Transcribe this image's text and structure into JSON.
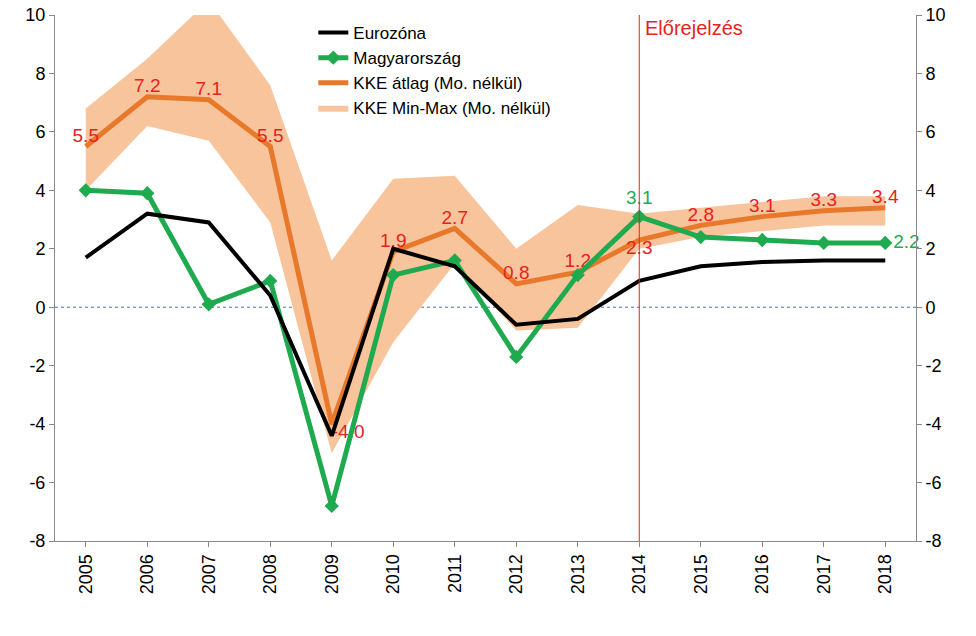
{
  "chart_data": {
    "type": "line",
    "categories": [
      "2005",
      "2006",
      "2007",
      "2008",
      "2009",
      "2010",
      "2011",
      "2012",
      "2013",
      "2014",
      "2015",
      "2016",
      "2017",
      "2018"
    ],
    "series": [
      {
        "name": "KKE Min-Max (Mo. nélkül)",
        "type": "range",
        "color": "#f8c49c",
        "low": [
          4.0,
          6.2,
          5.7,
          2.9,
          -5.0,
          -1.2,
          1.5,
          -0.8,
          -0.7,
          2.0,
          2.4,
          2.6,
          2.8,
          2.8
        ],
        "high": [
          6.8,
          8.5,
          10.5,
          7.6,
          1.6,
          4.4,
          4.5,
          2.0,
          3.5,
          3.2,
          3.4,
          3.6,
          3.8,
          3.8
        ]
      },
      {
        "name": "KKE átlag (Mo. nélkül)",
        "color": "#e8782a",
        "data_labels": true,
        "values": [
          5.5,
          7.2,
          7.1,
          5.5,
          -4.0,
          1.9,
          2.7,
          0.8,
          1.2,
          2.3,
          2.8,
          3.1,
          3.3,
          3.4
        ],
        "value_labels": [
          "5.5",
          "7.2",
          "7.1",
          "5.5",
          "-4.0",
          "1.9",
          "2.7",
          "0.8",
          "1.2",
          "2.3",
          "2.8",
          "3.1",
          "3.3",
          "3.4"
        ]
      },
      {
        "name": "Magyarország",
        "color": "#1faa4f",
        "marker": "diamond",
        "data_labels": true,
        "values": [
          4.0,
          3.9,
          0.1,
          0.9,
          -6.8,
          1.1,
          1.6,
          -1.7,
          1.1,
          3.1,
          2.4,
          2.3,
          2.2,
          2.2
        ],
        "value_labels": [
          null,
          null,
          null,
          null,
          null,
          null,
          null,
          null,
          null,
          "3.1",
          null,
          null,
          null,
          "2.2"
        ]
      },
      {
        "name": "Eurozóna",
        "color": "#000000",
        "values": [
          1.7,
          3.2,
          2.9,
          0.4,
          -4.4,
          2.0,
          1.4,
          -0.6,
          -0.4,
          0.9,
          1.4,
          1.55,
          1.6,
          1.6
        ]
      }
    ],
    "ylim": [
      -8,
      10
    ],
    "yticks": [
      -8,
      -6,
      -4,
      -2,
      0,
      2,
      4,
      6,
      8,
      10
    ],
    "y2lim": [
      -8,
      10
    ],
    "y2ticks": [
      -8,
      -6,
      -4,
      -2,
      0,
      2,
      4,
      6,
      8,
      10
    ],
    "grid": false,
    "legend": "top",
    "annotations": [
      {
        "text": "Előrejelzés",
        "category": "2014",
        "color": "#e8211e"
      }
    ]
  }
}
